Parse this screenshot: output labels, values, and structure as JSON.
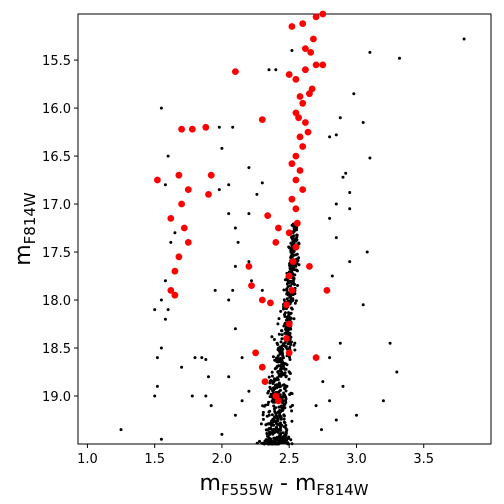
{
  "chart_data": {
    "type": "scatter",
    "xlabel": {
      "main": "m",
      "sub": "F555W",
      "sep": " - ",
      "main2": "m",
      "sub2": "F814W"
    },
    "ylabel": {
      "main": "m",
      "sub": "F814W"
    },
    "xlim": [
      0.93,
      4.0
    ],
    "ylim": [
      19.5,
      15.02
    ],
    "y_inverted": true,
    "grid": false,
    "xticks": [
      1.0,
      1.5,
      2.0,
      2.5,
      3.0,
      3.5
    ],
    "xtick_labels": [
      "1.0",
      "1.5",
      "2.0",
      "2.5",
      "3.0",
      "3.5"
    ],
    "yticks": [
      15.5,
      16.0,
      16.5,
      17.0,
      17.5,
      18.0,
      18.5,
      19.0
    ],
    "ytick_labels": [
      "15.5",
      "16.0",
      "16.5",
      "17.0",
      "17.5",
      "18.0",
      "18.5",
      "19.0"
    ],
    "series": [
      {
        "color": "#000000",
        "marker_size": "small",
        "points": [
          [
            3.8,
            15.28
          ],
          [
            3.32,
            15.48
          ],
          [
            3.1,
            15.42
          ],
          [
            2.98,
            15.85
          ],
          [
            3.05,
            16.15
          ],
          [
            3.1,
            16.52
          ],
          [
            2.92,
            16.68
          ],
          [
            2.95,
            16.88
          ],
          [
            2.95,
            17.05
          ],
          [
            3.08,
            17.5
          ],
          [
            2.95,
            17.6
          ],
          [
            2.85,
            16.28
          ],
          [
            2.88,
            16.1
          ],
          [
            2.8,
            16.3
          ],
          [
            2.9,
            16.72
          ],
          [
            2.85,
            17.0
          ],
          [
            2.8,
            17.15
          ],
          [
            2.85,
            17.35
          ],
          [
            2.82,
            17.75
          ],
          [
            2.88,
            18.45
          ],
          [
            2.75,
            18.85
          ],
          [
            2.8,
            19.05
          ],
          [
            3.0,
            19.2
          ],
          [
            3.05,
            18.05
          ],
          [
            3.2,
            19.05
          ],
          [
            3.3,
            18.75
          ],
          [
            3.25,
            18.45
          ],
          [
            2.8,
            18.6
          ],
          [
            2.7,
            19.1
          ],
          [
            2.9,
            18.9
          ],
          [
            2.74,
            19.35
          ],
          [
            2.85,
            19.25
          ],
          [
            2.35,
            15.6
          ],
          [
            2.4,
            15.6
          ],
          [
            2.52,
            15.4
          ],
          [
            2.08,
            16.2
          ],
          [
            2.0,
            16.42
          ],
          [
            1.98,
            16.2
          ],
          [
            2.2,
            16.62
          ],
          [
            2.3,
            16.78
          ],
          [
            2.05,
            17.1
          ],
          [
            2.2,
            17.1
          ],
          [
            2.1,
            17.25
          ],
          [
            2.12,
            17.4
          ],
          [
            2.2,
            17.6
          ],
          [
            2.22,
            17.8
          ],
          [
            2.3,
            17.9
          ],
          [
            2.1,
            17.65
          ],
          [
            2.08,
            17.9
          ],
          [
            1.95,
            17.9
          ],
          [
            1.98,
            16.85
          ],
          [
            1.92,
            16.7
          ],
          [
            2.05,
            16.8
          ],
          [
            2.26,
            16.9
          ],
          [
            1.55,
            16.0
          ],
          [
            1.6,
            16.5
          ],
          [
            1.58,
            16.8
          ],
          [
            1.5,
            18.1
          ],
          [
            1.52,
            18.6
          ],
          [
            1.55,
            18.5
          ],
          [
            1.52,
            18.9
          ],
          [
            1.5,
            19.0
          ],
          [
            1.58,
            18.2
          ],
          [
            1.6,
            18.1
          ],
          [
            1.55,
            18.0
          ],
          [
            1.58,
            17.8
          ],
          [
            1.62,
            17.4
          ],
          [
            1.65,
            17.3
          ],
          [
            1.8,
            18.6
          ],
          [
            1.85,
            18.6
          ],
          [
            1.88,
            18.62
          ],
          [
            1.9,
            18.8
          ],
          [
            1.88,
            19.0
          ],
          [
            1.92,
            19.1
          ],
          [
            1.7,
            18.7
          ],
          [
            1.78,
            19.0
          ],
          [
            1.25,
            19.35
          ],
          [
            1.55,
            19.45
          ],
          [
            2.05,
            18.0
          ],
          [
            2.1,
            18.3
          ],
          [
            2.15,
            18.6
          ],
          [
            2.05,
            18.8
          ],
          [
            2.0,
            19.4
          ],
          [
            2.1,
            19.2
          ],
          [
            2.15,
            19.05
          ],
          [
            2.2,
            18.95
          ]
        ]
      },
      {
        "color": "#ff0000",
        "marker_size": "large",
        "points": [
          [
            2.52,
            15.15
          ],
          [
            2.75,
            15.02
          ],
          [
            2.7,
            15.05
          ],
          [
            2.6,
            15.12
          ],
          [
            2.68,
            15.28
          ],
          [
            2.62,
            15.38
          ],
          [
            2.66,
            15.42
          ],
          [
            2.7,
            15.55
          ],
          [
            2.62,
            15.6
          ],
          [
            2.55,
            15.7
          ],
          [
            2.5,
            15.65
          ],
          [
            2.67,
            15.8
          ],
          [
            2.58,
            15.88
          ],
          [
            2.6,
            15.95
          ],
          [
            2.55,
            16.05
          ],
          [
            2.62,
            16.15
          ],
          [
            2.58,
            16.3
          ],
          [
            2.6,
            16.4
          ],
          [
            2.55,
            16.5
          ],
          [
            2.52,
            16.58
          ],
          [
            2.58,
            16.65
          ],
          [
            2.55,
            16.75
          ],
          [
            2.6,
            16.85
          ],
          [
            2.52,
            16.95
          ],
          [
            2.55,
            17.05
          ],
          [
            2.56,
            17.2
          ],
          [
            2.5,
            17.3
          ],
          [
            2.55,
            17.45
          ],
          [
            2.53,
            17.6
          ],
          [
            2.5,
            17.75
          ],
          [
            2.52,
            17.9
          ],
          [
            2.48,
            18.05
          ],
          [
            2.5,
            18.25
          ],
          [
            2.48,
            18.4
          ],
          [
            2.5,
            18.55
          ],
          [
            2.7,
            18.6
          ],
          [
            2.65,
            17.65
          ],
          [
            2.78,
            17.9
          ],
          [
            2.75,
            15.55
          ],
          [
            2.65,
            15.85
          ],
          [
            2.64,
            16.25
          ],
          [
            2.57,
            16.1
          ],
          [
            2.1,
            15.62
          ],
          [
            2.3,
            16.12
          ],
          [
            2.34,
            17.12
          ],
          [
            2.4,
            17.4
          ],
          [
            2.42,
            17.25
          ],
          [
            2.2,
            17.65
          ],
          [
            2.22,
            17.85
          ],
          [
            2.3,
            18.0
          ],
          [
            2.36,
            18.03
          ],
          [
            2.25,
            18.55
          ],
          [
            2.3,
            18.7
          ],
          [
            2.32,
            18.85
          ],
          [
            2.4,
            19.0
          ],
          [
            2.42,
            19.05
          ],
          [
            1.52,
            16.75
          ],
          [
            1.62,
            17.15
          ],
          [
            1.7,
            17.0
          ],
          [
            1.72,
            17.25
          ],
          [
            1.75,
            17.4
          ],
          [
            1.68,
            17.55
          ],
          [
            1.65,
            17.7
          ],
          [
            1.62,
            17.9
          ],
          [
            1.65,
            17.95
          ],
          [
            1.68,
            16.7
          ],
          [
            1.7,
            16.22
          ],
          [
            1.78,
            16.22
          ],
          [
            1.75,
            16.85
          ],
          [
            1.9,
            16.9
          ],
          [
            1.88,
            16.2
          ],
          [
            1.92,
            16.7
          ]
        ]
      }
    ],
    "main_sequence": {
      "color": "#000000",
      "count": 700,
      "seed": 7,
      "y_range": [
        17.2,
        19.5
      ],
      "spine": [
        [
          17.0,
          2.55
        ],
        [
          17.6,
          2.53
        ],
        [
          18.0,
          2.5
        ],
        [
          18.5,
          2.45
        ],
        [
          19.0,
          2.42
        ],
        [
          19.5,
          2.4
        ]
      ]
    }
  }
}
